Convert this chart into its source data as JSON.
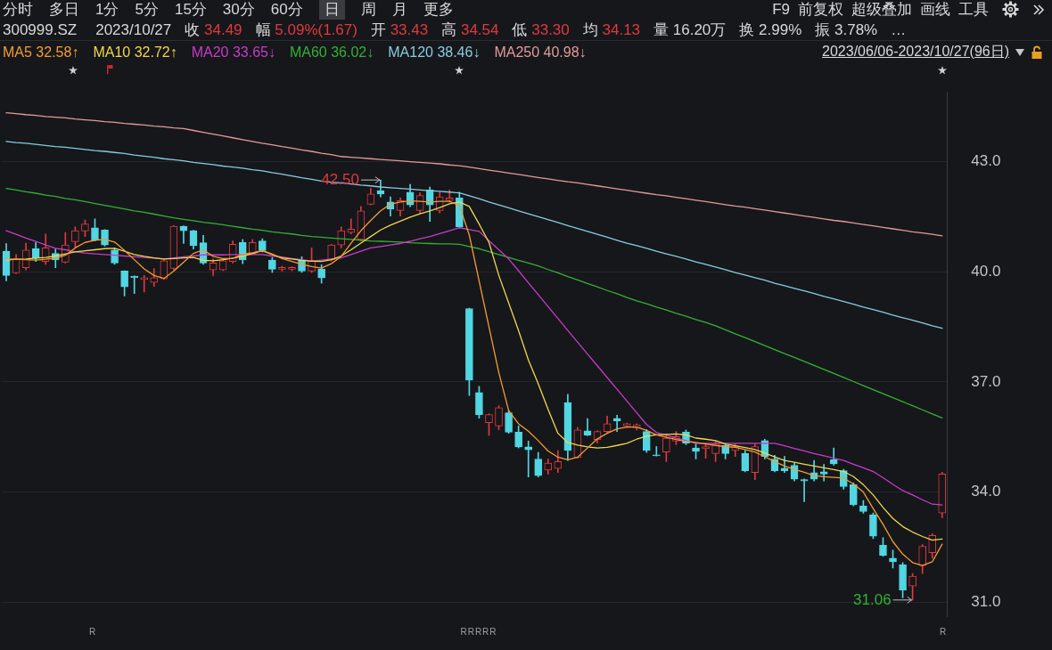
{
  "chart_data": {
    "type": "candlestick",
    "title": "300999.SZ",
    "subtitle": "2023/10/27",
    "annotations": [
      "分时",
      "多日",
      "1分",
      "5分",
      "15分",
      "30分",
      "60分",
      "日",
      "周",
      "月",
      "更多",
      "F9",
      "前复权",
      "超级叠加",
      "画线",
      "工具",
      "收 34.49",
      "幅 5.09%(1.67)",
      "开 33.43",
      "高 34.54",
      "低 33.30",
      "均 34.13",
      "量 16.20万",
      "换 2.99%",
      "振 3.78%",
      "…",
      "2023/06/06-2023/10/27(96日)",
      "R",
      "RRRRR",
      "R",
      "42.50",
      "31.06"
    ],
    "categories": [
      null,
      null,
      null,
      null,
      null,
      null,
      null,
      null,
      null,
      null,
      null,
      null,
      null,
      null,
      null,
      null,
      null,
      null,
      null,
      null,
      null,
      null,
      null,
      null,
      null,
      null,
      null,
      null,
      null,
      null,
      null,
      null,
      null,
      null,
      null,
      null,
      null,
      null,
      null,
      null,
      null,
      null,
      null,
      null,
      null,
      null,
      null,
      null,
      null,
      null,
      null,
      null,
      null,
      null,
      null,
      null,
      null,
      null,
      null,
      null,
      null,
      null,
      null,
      null,
      null,
      null,
      null,
      null,
      null,
      null,
      null,
      null,
      null,
      null,
      null,
      null,
      null,
      null,
      null,
      null,
      null,
      null,
      null,
      null,
      null,
      null,
      null,
      null,
      null,
      null,
      null,
      null,
      null,
      null,
      null,
      null
    ],
    "ohlc": [
      [
        40.56,
        40.77,
        39.75,
        39.9
      ],
      [
        39.97,
        40.47,
        39.95,
        40.35
      ],
      [
        40.11,
        40.78,
        40.05,
        40.59
      ],
      [
        40.63,
        40.8,
        40.28,
        40.37
      ],
      [
        40.28,
        41.03,
        40.2,
        40.65
      ],
      [
        40.5,
        40.62,
        40.11,
        40.32
      ],
      [
        40.26,
        41.07,
        40.24,
        40.73
      ],
      [
        40.82,
        41.22,
        40.65,
        41.12
      ],
      [
        41.11,
        41.41,
        40.96,
        41.3
      ],
      [
        41.2,
        41.44,
        40.84,
        40.86
      ],
      [
        41.14,
        41.15,
        40.7,
        40.73
      ],
      [
        40.59,
        40.65,
        40.2,
        40.24
      ],
      [
        40.02,
        40.03,
        39.34,
        39.59
      ],
      [
        39.88,
        39.89,
        39.41,
        39.84
      ],
      [
        39.79,
        39.9,
        39.45,
        39.84
      ],
      [
        39.71,
        40.09,
        39.6,
        39.84
      ],
      [
        39.81,
        40.32,
        39.79,
        40.3
      ],
      [
        40.09,
        41.26,
        40.05,
        41.24
      ],
      [
        41.24,
        41.25,
        40.77,
        41.12
      ],
      [
        41.12,
        41.13,
        40.62,
        40.71
      ],
      [
        40.79,
        40.99,
        40.2,
        40.24
      ],
      [
        40.05,
        40.35,
        39.9,
        40.24
      ],
      [
        40.05,
        40.32,
        40.03,
        40.3
      ],
      [
        40.28,
        40.84,
        40.24,
        40.75
      ],
      [
        40.8,
        40.88,
        40.22,
        40.32
      ],
      [
        40.5,
        40.88,
        40.47,
        40.8
      ],
      [
        40.84,
        40.9,
        40.54,
        40.58
      ],
      [
        40.32,
        40.39,
        39.98,
        40.07
      ],
      [
        40.07,
        40.15,
        40.02,
        40.12
      ],
      [
        40.07,
        40.14,
        40.03,
        40.12
      ],
      [
        40.32,
        40.41,
        39.98,
        40.02
      ],
      [
        40.02,
        40.65,
        39.98,
        40.29
      ],
      [
        40.07,
        40.19,
        39.69,
        39.83
      ],
      [
        40.32,
        40.75,
        40.29,
        40.73
      ],
      [
        40.73,
        41.22,
        40.65,
        41.12
      ],
      [
        41.07,
        41.44,
        41.03,
        41.16
      ],
      [
        40.88,
        41.78,
        40.84,
        41.66
      ],
      [
        41.84,
        42.27,
        41.82,
        42.12
      ],
      [
        42.21,
        42.5,
        42.04,
        42.12
      ],
      [
        41.9,
        42.04,
        41.52,
        41.71
      ],
      [
        41.67,
        42.01,
        41.52,
        41.94
      ],
      [
        42.17,
        42.38,
        41.77,
        41.82
      ],
      [
        41.67,
        42.15,
        41.6,
        42.08
      ],
      [
        42.23,
        42.31,
        41.37,
        41.82
      ],
      [
        41.67,
        42.17,
        41.6,
        42.04
      ],
      [
        41.94,
        42.23,
        41.9,
        42.01
      ],
      [
        42.01,
        42.17,
        41.2,
        41.22
      ],
      [
        39.0,
        39.01,
        36.63,
        37.05
      ],
      [
        36.71,
        36.88,
        36.01,
        36.11
      ],
      [
        35.89,
        36.13,
        35.54,
        36.11
      ],
      [
        35.8,
        36.35,
        35.7,
        36.3
      ],
      [
        36.16,
        36.22,
        35.6,
        35.63
      ],
      [
        35.63,
        35.8,
        35.2,
        35.23
      ],
      [
        35.23,
        35.39,
        34.41,
        35.15
      ],
      [
        34.9,
        35.08,
        34.41,
        34.45
      ],
      [
        34.6,
        34.9,
        34.49,
        34.79
      ],
      [
        34.64,
        35.13,
        34.53,
        34.83
      ],
      [
        36.44,
        36.66,
        34.86,
        35.13
      ],
      [
        34.94,
        35.76,
        34.92,
        35.69
      ],
      [
        35.67,
        36.0,
        35.53,
        35.55
      ],
      [
        35.43,
        35.67,
        35.33,
        35.65
      ],
      [
        35.65,
        36.07,
        35.6,
        35.86
      ],
      [
        36.01,
        36.09,
        35.65,
        35.93
      ],
      [
        35.8,
        35.88,
        35.76,
        35.86
      ],
      [
        35.75,
        35.86,
        35.69,
        35.83
      ],
      [
        35.65,
        35.7,
        35.08,
        35.13
      ],
      [
        35.01,
        35.24,
        34.98,
        34.99
      ],
      [
        35.09,
        35.58,
        34.83,
        35.47
      ],
      [
        35.39,
        35.65,
        35.29,
        35.51
      ],
      [
        35.63,
        35.69,
        35.29,
        35.33
      ],
      [
        35.2,
        35.31,
        34.9,
        35.11
      ],
      [
        35.18,
        35.33,
        34.92,
        35.24
      ],
      [
        35.05,
        35.39,
        34.83,
        35.31
      ],
      [
        35.27,
        35.31,
        34.9,
        35.05
      ],
      [
        35.13,
        35.31,
        34.97,
        35.24
      ],
      [
        35.05,
        35.13,
        34.55,
        34.58
      ],
      [
        34.53,
        35.31,
        34.34,
        35.24
      ],
      [
        35.4,
        35.44,
        34.9,
        34.97
      ],
      [
        34.9,
        35.0,
        34.55,
        34.58
      ],
      [
        34.65,
        34.97,
        34.53,
        34.58
      ],
      [
        34.73,
        34.79,
        34.3,
        34.35
      ],
      [
        34.34,
        34.36,
        33.74,
        34.3
      ],
      [
        34.53,
        34.86,
        34.3,
        34.35
      ],
      [
        34.55,
        34.75,
        34.3,
        34.49
      ],
      [
        34.88,
        35.2,
        34.73,
        34.77
      ],
      [
        34.58,
        34.62,
        34.08,
        34.15
      ],
      [
        34.2,
        34.25,
        33.62,
        33.66
      ],
      [
        33.62,
        33.77,
        33.42,
        33.47
      ],
      [
        33.38,
        33.43,
        32.73,
        32.8
      ],
      [
        32.55,
        32.76,
        32.25,
        32.27
      ],
      [
        32.2,
        32.42,
        31.93,
        32.1
      ],
      [
        32.02,
        32.08,
        31.12,
        31.33
      ],
      [
        31.44,
        31.78,
        31.06,
        31.71
      ],
      [
        32.0,
        32.57,
        31.78,
        32.52
      ],
      [
        32.35,
        32.87,
        32.2,
        32.82
      ],
      [
        33.43,
        34.54,
        33.3,
        34.49
      ]
    ],
    "colors": [
      "#52d6e2",
      "#e0393e",
      "#e0393e",
      "#52d6e2",
      "#e0393e",
      "#52d6e2",
      "#e0393e",
      "#e0393e",
      "#e0393e",
      "#52d6e2",
      "#52d6e2",
      "#52d6e2",
      "#52d6e2",
      "#52d6e2",
      "#e0393e",
      "#e0393e",
      "#e0393e",
      "#e0393e",
      "#52d6e2",
      "#52d6e2",
      "#52d6e2",
      "#e0393e",
      "#e0393e",
      "#e0393e",
      "#52d6e2",
      "#e0393e",
      "#52d6e2",
      "#52d6e2",
      "#e0393e",
      "#e0393e",
      "#52d6e2",
      "#e0393e",
      "#52d6e2",
      "#e0393e",
      "#e0393e",
      "#e0393e",
      "#e0393e",
      "#e0393e",
      "#52d6e2",
      "#52d6e2",
      "#e0393e",
      "#52d6e2",
      "#e0393e",
      "#52d6e2",
      "#e0393e",
      "#e0393e",
      "#52d6e2",
      "#52d6e2",
      "#52d6e2",
      "#e0393e",
      "#e0393e",
      "#52d6e2",
      "#52d6e2",
      "#52d6e2",
      "#52d6e2",
      "#e0393e",
      "#e0393e",
      "#52d6e2",
      "#e0393e",
      "#52d6e2",
      "#e0393e",
      "#e0393e",
      "#52d6e2",
      "#e0393e",
      "#e0393e",
      "#52d6e2",
      "#52d6e2",
      "#e0393e",
      "#e0393e",
      "#52d6e2",
      "#52d6e2",
      "#e0393e",
      "#e0393e",
      "#52d6e2",
      "#e0393e",
      "#52d6e2",
      "#e0393e",
      "#52d6e2",
      "#52d6e2",
      "#52d6e2",
      "#52d6e2",
      "#52d6e2",
      "#52d6e2",
      "#52d6e2",
      "#52d6e2",
      "#52d6e2",
      "#52d6e2",
      "#52d6e2",
      "#52d6e2",
      "#52d6e2",
      "#52d6e2",
      "#52d6e2",
      "#e0393e",
      "#e0393e",
      "#e0393e",
      "#e0393e"
    ],
    "series": [
      {
        "name": "MA5 32.58↑",
        "type": "line",
        "color": "#f39c34",
        "values": [
          40.35,
          40.34,
          40.33,
          40.32,
          40.34,
          40.37,
          40.45,
          40.65,
          40.8,
          40.86,
          40.88,
          40.81,
          40.58,
          40.33,
          40.08,
          39.9,
          39.82,
          40.02,
          40.26,
          40.5,
          40.6,
          40.42,
          40.36,
          40.36,
          40.48,
          40.52,
          40.58,
          40.48,
          40.36,
          40.28,
          40.2,
          40.14,
          40.1,
          40.22,
          40.42,
          40.78,
          41.12,
          41.4,
          41.66,
          41.84,
          41.9,
          41.93,
          41.92,
          41.9,
          41.92,
          41.92,
          41.8,
          41.0,
          39.75,
          38.5,
          37.25,
          36.22,
          35.86,
          35.66,
          35.4,
          35.12,
          34.95,
          34.88,
          34.95,
          35.2,
          35.45,
          35.6,
          35.72,
          35.77,
          35.77,
          35.68,
          35.56,
          35.49,
          35.43,
          35.38,
          35.35,
          35.31,
          35.27,
          35.24,
          35.22,
          35.16,
          35.09,
          34.96,
          34.83,
          34.71,
          34.62,
          34.54,
          34.45,
          34.42,
          34.4,
          34.38,
          34.22,
          34.0,
          33.55,
          33.12,
          32.65,
          32.31,
          32.08,
          32.0,
          32.1,
          32.58
        ]
      },
      {
        "name": "MA10 32.72↑",
        "type": "line",
        "color": "#efd84a",
        "values": [
          40.32,
          40.34,
          40.35,
          40.37,
          40.39,
          40.43,
          40.49,
          40.54,
          40.57,
          40.6,
          40.63,
          40.64,
          40.56,
          40.47,
          40.42,
          40.38,
          40.35,
          40.36,
          40.38,
          40.39,
          40.31,
          40.3,
          40.33,
          40.37,
          40.42,
          40.5,
          40.57,
          40.47,
          40.38,
          40.35,
          40.31,
          40.29,
          40.28,
          40.33,
          40.43,
          40.6,
          40.78,
          40.96,
          41.14,
          41.27,
          41.38,
          41.49,
          41.58,
          41.66,
          41.75,
          41.85,
          41.9,
          41.78,
          41.3,
          40.8,
          39.9,
          39.15,
          38.4,
          37.6,
          36.95,
          36.25,
          35.6,
          35.35,
          35.28,
          35.23,
          35.2,
          35.22,
          35.27,
          35.33,
          35.44,
          35.52,
          35.56,
          35.57,
          35.58,
          35.56,
          35.47,
          35.44,
          35.4,
          35.31,
          35.26,
          35.21,
          35.16,
          35.06,
          34.96,
          34.86,
          34.81,
          34.76,
          34.71,
          34.66,
          34.61,
          34.56,
          34.42,
          34.2,
          33.92,
          33.58,
          33.28,
          33.06,
          32.91,
          32.79,
          32.69,
          32.72
        ]
      },
      {
        "name": "MA20 33.65↓",
        "type": "line",
        "color": "#c83cc8",
        "values": [
          41.12,
          41.02,
          40.92,
          40.83,
          40.73,
          40.64,
          40.6,
          40.55,
          40.51,
          40.49,
          40.47,
          40.45,
          40.43,
          40.41,
          40.39,
          40.37,
          40.35,
          40.38,
          40.41,
          40.43,
          40.46,
          40.46,
          40.46,
          40.47,
          40.47,
          40.47,
          40.47,
          40.43,
          40.4,
          40.36,
          40.33,
          40.29,
          40.32,
          40.35,
          40.38,
          40.47,
          40.56,
          40.65,
          40.69,
          40.73,
          40.77,
          40.83,
          40.9,
          40.96,
          41.04,
          41.12,
          41.2,
          41.15,
          41.1,
          40.85,
          40.6,
          40.35,
          40.03,
          39.7,
          39.38,
          39.05,
          38.73,
          38.4,
          38.08,
          37.76,
          37.44,
          37.12,
          36.8,
          36.48,
          36.16,
          35.84,
          35.62,
          35.55,
          35.47,
          35.4,
          35.33,
          35.33,
          35.33,
          35.33,
          35.33,
          35.33,
          35.33,
          35.33,
          35.33,
          35.26,
          35.19,
          35.12,
          35.05,
          34.99,
          34.92,
          34.86,
          34.76,
          34.66,
          34.56,
          34.39,
          34.21,
          34.04,
          33.92,
          33.79,
          33.67,
          33.65
        ]
      },
      {
        "name": "MA60 36.02↓",
        "type": "line",
        "color": "#35b035",
        "values": [
          42.27,
          42.23,
          42.18,
          42.14,
          42.09,
          42.05,
          42.0,
          41.96,
          41.91,
          41.86,
          41.81,
          41.76,
          41.71,
          41.66,
          41.62,
          41.57,
          41.52,
          41.47,
          41.43,
          41.39,
          41.35,
          41.32,
          41.28,
          41.24,
          41.2,
          41.16,
          41.13,
          41.09,
          41.06,
          41.03,
          40.99,
          40.96,
          40.94,
          40.92,
          40.9,
          40.88,
          40.86,
          40.84,
          40.83,
          40.82,
          40.81,
          40.79,
          40.78,
          40.77,
          40.76,
          40.76,
          40.75,
          40.69,
          40.63,
          40.55,
          40.47,
          40.39,
          40.31,
          40.24,
          40.16,
          40.06,
          39.97,
          39.87,
          39.78,
          39.68,
          39.59,
          39.49,
          39.4,
          39.3,
          39.21,
          39.13,
          39.04,
          38.96,
          38.87,
          38.79,
          38.7,
          38.62,
          38.53,
          38.42,
          38.31,
          38.21,
          38.1,
          37.99,
          37.88,
          37.77,
          37.67,
          37.56,
          37.45,
          37.34,
          37.23,
          37.12,
          37.01,
          36.9,
          36.79,
          36.68,
          36.57,
          36.46,
          36.35,
          36.24,
          36.13,
          36.02
        ]
      },
      {
        "name": "MA120 38.46↓",
        "type": "line",
        "color": "#86cde0",
        "values": [
          43.55,
          43.52,
          43.5,
          43.47,
          43.44,
          43.41,
          43.39,
          43.36,
          43.33,
          43.3,
          43.28,
          43.25,
          43.22,
          43.18,
          43.15,
          43.12,
          43.08,
          43.05,
          43.02,
          42.98,
          42.95,
          42.92,
          42.88,
          42.85,
          42.82,
          42.78,
          42.75,
          42.7,
          42.66,
          42.61,
          42.56,
          42.52,
          42.47,
          42.44,
          42.42,
          42.39,
          42.36,
          42.34,
          42.31,
          42.29,
          42.27,
          42.25,
          42.23,
          42.21,
          42.19,
          42.17,
          42.15,
          42.07,
          41.99,
          41.9,
          41.82,
          41.74,
          41.66,
          41.58,
          41.5,
          41.42,
          41.34,
          41.26,
          41.18,
          41.1,
          41.02,
          40.94,
          40.86,
          40.78,
          40.71,
          40.64,
          40.56,
          40.49,
          40.42,
          40.35,
          40.27,
          40.2,
          40.13,
          40.06,
          39.98,
          39.91,
          39.84,
          39.77,
          39.69,
          39.62,
          39.55,
          39.48,
          39.41,
          39.33,
          39.26,
          39.19,
          39.12,
          39.04,
          38.97,
          38.9,
          38.82,
          38.75,
          38.68,
          38.61,
          38.53,
          38.46
        ]
      },
      {
        "name": "MA250 40.98↓",
        "type": "line",
        "color": "#e39a9a",
        "values": [
          44.33,
          44.31,
          44.28,
          44.26,
          44.23,
          44.21,
          44.19,
          44.16,
          44.14,
          44.12,
          44.09,
          44.07,
          44.04,
          44.02,
          44.0,
          43.97,
          43.95,
          43.92,
          43.9,
          43.85,
          43.8,
          43.75,
          43.7,
          43.65,
          43.6,
          43.55,
          43.5,
          43.46,
          43.41,
          43.37,
          43.32,
          43.28,
          43.23,
          43.19,
          43.14,
          43.12,
          43.1,
          43.08,
          43.06,
          43.04,
          43.02,
          43.0,
          42.98,
          42.96,
          42.94,
          42.91,
          42.89,
          42.85,
          42.81,
          42.77,
          42.73,
          42.69,
          42.65,
          42.61,
          42.57,
          42.53,
          42.49,
          42.45,
          42.42,
          42.38,
          42.34,
          42.3,
          42.26,
          42.22,
          42.18,
          42.14,
          42.1,
          42.07,
          42.03,
          41.99,
          41.95,
          41.91,
          41.87,
          41.83,
          41.79,
          41.76,
          41.72,
          41.68,
          41.64,
          41.6,
          41.56,
          41.52,
          41.48,
          41.44,
          41.4,
          41.37,
          41.33,
          41.29,
          41.25,
          41.21,
          41.17,
          41.13,
          41.09,
          41.06,
          41.02,
          40.98
        ]
      }
    ],
    "ylim": [
      30.6,
      44.9
    ],
    "yticks": [
      {
        "value": 31,
        "label": "31.0"
      },
      {
        "value": 34,
        "label": "34.0"
      },
      {
        "value": 37,
        "label": "37.0"
      },
      {
        "value": 40,
        "label": "40.0"
      },
      {
        "value": 43,
        "label": "43.0"
      }
    ],
    "grid": "y",
    "legend": "top left",
    "tick_labels": "y"
  }
}
